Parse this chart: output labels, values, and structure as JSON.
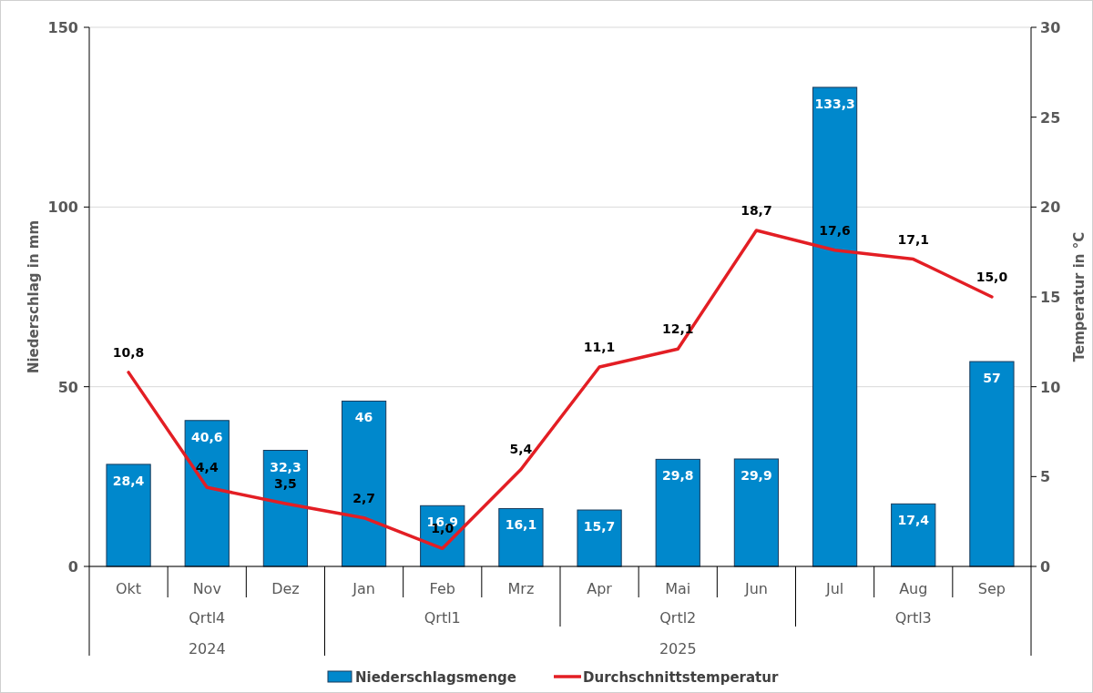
{
  "chart_data": {
    "type": "bar",
    "categories": [
      "Okt",
      "Nov",
      "Dez",
      "Jan",
      "Feb",
      "Mrz",
      "Apr",
      "Mai",
      "Jun",
      "Jul",
      "Aug",
      "Sep"
    ],
    "series": [
      {
        "name": "Niederschlagsmenge",
        "color": "#0088cc",
        "values": [
          28.4,
          40.6,
          32.3,
          46,
          16.9,
          16.1,
          15.7,
          29.8,
          29.9,
          133.3,
          17.4,
          57
        ],
        "value_labels": [
          "28,4",
          "40,6",
          "32,3",
          "46",
          "16,9",
          "16,1",
          "15,7",
          "29,8",
          "29,9",
          "133,3",
          "17,4",
          "57"
        ]
      },
      {
        "name": "Durchschnittstemperatur",
        "type": "line",
        "axis": "y2",
        "color": "#e31e24",
        "values": [
          10.8,
          4.4,
          3.5,
          2.7,
          1.0,
          5.4,
          11.1,
          12.1,
          18.7,
          17.6,
          17.1,
          15.0
        ],
        "value_labels": [
          "10,8",
          "4,4",
          "3,5",
          "2,7",
          "1,0",
          "5,4",
          "11,1",
          "12,1",
          "18,7",
          "17,6",
          "17,1",
          "15,0"
        ]
      }
    ],
    "ylabel": "Niederschlag in mm",
    "y2label": "Temperatur in °C",
    "ylim": [
      0,
      150
    ],
    "yticks": [
      0,
      50,
      100,
      150
    ],
    "y2lim": [
      0,
      30
    ],
    "y2ticks": [
      0,
      5,
      10,
      15,
      20,
      25,
      30
    ],
    "annotations": [
      "Qrtl4",
      "Qrtl1",
      "Qrtl2",
      "Qrtl3",
      "2024",
      "2025"
    ],
    "grid": "y",
    "legend": "bottom",
    "marker": "none",
    "line_style": "solid"
  }
}
